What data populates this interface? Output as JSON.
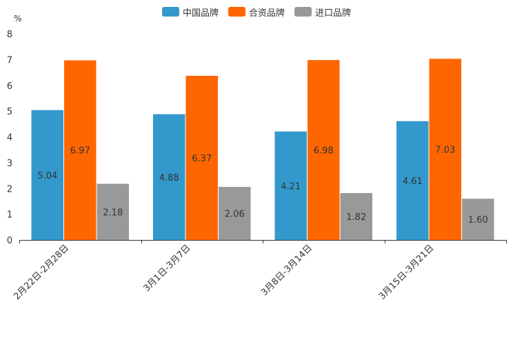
{
  "chart_data": {
    "type": "bar",
    "unit_label": "%",
    "categories": [
      "2月22日-2月28日",
      "3月1日-3月7日",
      "3月8日-3月14日",
      "3月15日-3月21日"
    ],
    "series": [
      {
        "name": "中国品牌",
        "color": "#3399cc",
        "values": [
          5.04,
          4.88,
          4.21,
          4.61
        ],
        "labels": [
          "5.04",
          "4.88",
          "4.21",
          "4.61"
        ]
      },
      {
        "name": "合资品牌",
        "color": "#ff6600",
        "values": [
          6.97,
          6.37,
          6.98,
          7.03
        ],
        "labels": [
          "6.97",
          "6.37",
          "6.98",
          "7.03"
        ]
      },
      {
        "name": "进口品牌",
        "color": "#999999",
        "values": [
          2.18,
          2.06,
          1.82,
          1.6
        ],
        "labels": [
          "2.18",
          "2.06",
          "1.82",
          "1.60"
        ]
      }
    ],
    "ylim": [
      0,
      8
    ],
    "yticks": [
      0,
      1,
      2,
      3,
      4,
      5,
      6,
      7,
      8
    ],
    "grid": false,
    "legend_position": "top-center"
  }
}
